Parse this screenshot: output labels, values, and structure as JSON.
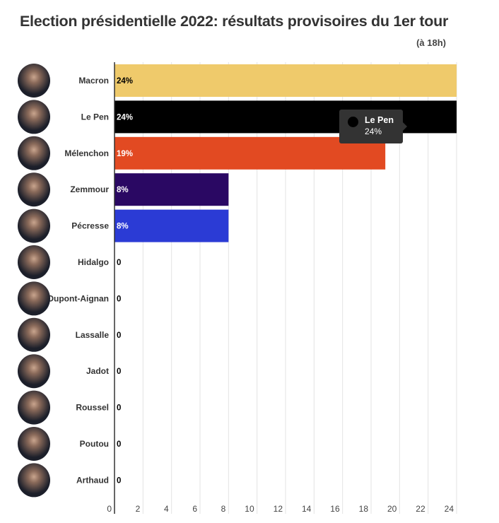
{
  "chart_data": {
    "type": "bar",
    "orientation": "horizontal",
    "title": "Election présidentielle 2022: résultats provisoires du 1er tour",
    "subtitle": "(à 18h)",
    "categories": [
      "Macron",
      "Le Pen",
      "Mélenchon",
      "Zemmour",
      "Pécresse",
      "Hidalgo",
      "Dupont-Aignan",
      "Lassalle",
      "Jadot",
      "Roussel",
      "Poutou",
      "Arthaud"
    ],
    "values": [
      24,
      24,
      19,
      8,
      8,
      0,
      0,
      0,
      0,
      0,
      0,
      0
    ],
    "data_labels": [
      "24%",
      "24%",
      "19%",
      "8%",
      "8%",
      "0",
      "0",
      "0",
      "0",
      "0",
      "0",
      "0"
    ],
    "colors": [
      "#efca6b",
      "#000000",
      "#e24a22",
      "#2a0863",
      "#2b3bd5",
      null,
      null,
      null,
      null,
      null,
      null,
      null
    ],
    "label_colors": [
      "#000000",
      "#ffffff",
      "#ffffff",
      "#ffffff",
      "#ffffff",
      "#000000",
      "#000000",
      "#000000",
      "#000000",
      "#000000",
      "#000000",
      "#000000"
    ],
    "xlim": [
      0,
      24
    ],
    "xticks": [
      0,
      2,
      4,
      6,
      8,
      10,
      12,
      14,
      16,
      18,
      20,
      22,
      24
    ],
    "grid": true,
    "xlabel": "",
    "ylabel": "",
    "avatars": "candidate-photo-icons",
    "tooltip": {
      "name": "Le Pen",
      "value": "24%",
      "color": "#000000"
    }
  }
}
